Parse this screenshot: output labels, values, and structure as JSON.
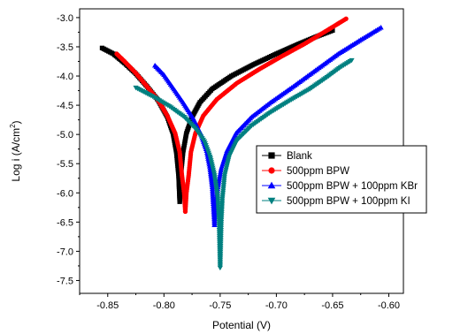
{
  "chart_data": {
    "type": "line",
    "xlabel": "Potential (V)",
    "ylabel": "Log i (A/cm²)",
    "ylabel_parts": {
      "before": "Log i (A/cm",
      "sup": "2",
      "after": ")"
    },
    "xlim": [
      -0.875,
      -0.587
    ],
    "ylim": [
      -7.72,
      -2.85
    ],
    "x_ticks": [
      -0.85,
      -0.8,
      -0.75,
      -0.7,
      -0.65,
      -0.6
    ],
    "x_tick_labels": [
      "-0.85",
      "-0.80",
      "-0.75",
      "-0.70",
      "-0.65",
      "-0.60"
    ],
    "y_ticks": [
      -3.0,
      -3.5,
      -4.0,
      -4.5,
      -5.0,
      -5.5,
      -6.0,
      -6.5,
      -7.0,
      -7.5
    ],
    "y_tick_labels": [
      "-3.0",
      "-3.5",
      "-4.0",
      "-4.5",
      "-5.0",
      "-5.5",
      "-6.0",
      "-6.5",
      "-7.0",
      "-7.5"
    ],
    "grid": false,
    "legend_position": "right",
    "series": [
      {
        "name": "Blank",
        "color": "#000000",
        "marker": "square",
        "cathodic": [
          [
            -0.855,
            -3.52
          ],
          [
            -0.845,
            -3.62
          ],
          [
            -0.835,
            -3.78
          ],
          [
            -0.825,
            -3.96
          ],
          [
            -0.815,
            -4.18
          ],
          [
            -0.805,
            -4.42
          ],
          [
            -0.797,
            -4.7
          ],
          [
            -0.792,
            -4.98
          ],
          [
            -0.789,
            -5.3
          ],
          [
            -0.787,
            -5.7
          ],
          [
            -0.786,
            -6.15
          ]
        ],
        "anodic": [
          [
            -0.786,
            -6.15
          ],
          [
            -0.785,
            -5.7
          ],
          [
            -0.783,
            -5.3
          ],
          [
            -0.78,
            -4.98
          ],
          [
            -0.775,
            -4.7
          ],
          [
            -0.768,
            -4.45
          ],
          [
            -0.757,
            -4.22
          ],
          [
            -0.74,
            -4.0
          ],
          [
            -0.72,
            -3.8
          ],
          [
            -0.7,
            -3.62
          ],
          [
            -0.68,
            -3.45
          ],
          [
            -0.665,
            -3.33
          ],
          [
            -0.65,
            -3.22
          ]
        ]
      },
      {
        "name": "500ppm BPW",
        "color": "#ff0000",
        "marker": "circle",
        "cathodic": [
          [
            -0.842,
            -3.62
          ],
          [
            -0.835,
            -3.75
          ],
          [
            -0.825,
            -3.95
          ],
          [
            -0.815,
            -4.18
          ],
          [
            -0.805,
            -4.42
          ],
          [
            -0.797,
            -4.68
          ],
          [
            -0.79,
            -4.98
          ],
          [
            -0.786,
            -5.3
          ],
          [
            -0.784,
            -5.7
          ],
          [
            -0.782,
            -6.0
          ],
          [
            -0.781,
            -6.32
          ]
        ],
        "anodic": [
          [
            -0.781,
            -6.32
          ],
          [
            -0.78,
            -6.0
          ],
          [
            -0.778,
            -5.7
          ],
          [
            -0.776,
            -5.3
          ],
          [
            -0.772,
            -4.98
          ],
          [
            -0.765,
            -4.68
          ],
          [
            -0.753,
            -4.4
          ],
          [
            -0.735,
            -4.12
          ],
          [
            -0.715,
            -3.88
          ],
          [
            -0.695,
            -3.66
          ],
          [
            -0.675,
            -3.45
          ],
          [
            -0.655,
            -3.22
          ],
          [
            -0.638,
            -3.02
          ]
        ]
      },
      {
        "name": "500ppm BPW + 100ppm KBr",
        "color": "#0000ff",
        "marker": "triangle-up",
        "cathodic": [
          [
            -0.808,
            -3.82
          ],
          [
            -0.8,
            -3.98
          ],
          [
            -0.792,
            -4.2
          ],
          [
            -0.783,
            -4.45
          ],
          [
            -0.774,
            -4.72
          ],
          [
            -0.767,
            -5.0
          ],
          [
            -0.762,
            -5.28
          ],
          [
            -0.759,
            -5.58
          ],
          [
            -0.757,
            -5.9
          ],
          [
            -0.756,
            -6.22
          ],
          [
            -0.755,
            -6.55
          ]
        ],
        "anodic": [
          [
            -0.755,
            -6.55
          ],
          [
            -0.754,
            -6.22
          ],
          [
            -0.752,
            -5.9
          ],
          [
            -0.749,
            -5.58
          ],
          [
            -0.744,
            -5.28
          ],
          [
            -0.736,
            -4.98
          ],
          [
            -0.722,
            -4.7
          ],
          [
            -0.705,
            -4.45
          ],
          [
            -0.685,
            -4.18
          ],
          [
            -0.665,
            -3.9
          ],
          [
            -0.645,
            -3.62
          ],
          [
            -0.625,
            -3.38
          ],
          [
            -0.607,
            -3.17
          ]
        ]
      },
      {
        "name": "500ppm BPW + 100ppm KI",
        "color": "#008080",
        "marker": "triangle-down",
        "cathodic": [
          [
            -0.825,
            -4.2
          ],
          [
            -0.81,
            -4.35
          ],
          [
            -0.795,
            -4.52
          ],
          [
            -0.782,
            -4.7
          ],
          [
            -0.772,
            -4.9
          ],
          [
            -0.764,
            -5.12
          ],
          [
            -0.759,
            -5.38
          ],
          [
            -0.755,
            -5.7
          ],
          [
            -0.752,
            -6.1
          ],
          [
            -0.751,
            -6.5
          ],
          [
            -0.75,
            -7.28
          ]
        ],
        "anodic": [
          [
            -0.75,
            -7.28
          ],
          [
            -0.749,
            -6.5
          ],
          [
            -0.748,
            -6.1
          ],
          [
            -0.746,
            -5.7
          ],
          [
            -0.742,
            -5.38
          ],
          [
            -0.735,
            -5.1
          ],
          [
            -0.722,
            -4.85
          ],
          [
            -0.705,
            -4.62
          ],
          [
            -0.688,
            -4.42
          ],
          [
            -0.67,
            -4.22
          ],
          [
            -0.655,
            -4.02
          ],
          [
            -0.643,
            -3.85
          ],
          [
            -0.633,
            -3.73
          ]
        ]
      }
    ]
  }
}
